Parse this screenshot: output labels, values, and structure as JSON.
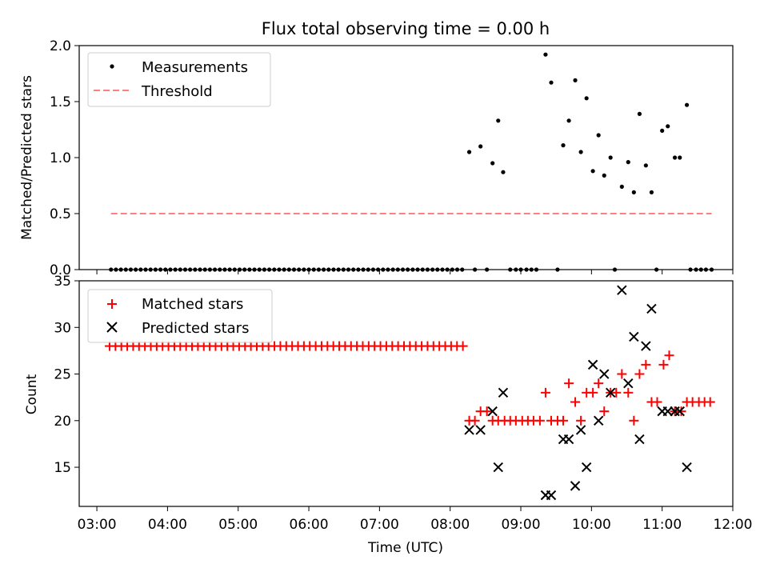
{
  "chart_data": [
    {
      "type": "scatter",
      "title": "Flux total observing time = 0.00 h",
      "xlabel": "",
      "ylabel": "Matched/Predicted stars",
      "ylim": [
        0,
        2.0
      ],
      "xlim": [
        2.75,
        12.0
      ],
      "yticks": [
        0.0,
        0.5,
        1.0,
        1.5,
        2.0
      ],
      "ytick_labels": [
        "0.0",
        "0.5",
        "1.0",
        "1.5",
        "2.0"
      ],
      "grid": false,
      "legend_position": "top-left",
      "legend": [
        {
          "label": "Measurements",
          "marker": "dot",
          "color": "#000000"
        },
        {
          "label": "Threshold",
          "marker": "dashed-line",
          "color": "#ff7f7f"
        }
      ],
      "threshold": {
        "name": "Threshold",
        "y": 0.5,
        "x_start": 3.2,
        "x_end": 11.7
      },
      "series": [
        {
          "name": "Measurements",
          "marker": "dot",
          "color": "#000000",
          "points": [
            [
              3.2,
              0
            ],
            [
              3.27,
              0
            ],
            [
              3.34,
              0
            ],
            [
              3.41,
              0
            ],
            [
              3.48,
              0
            ],
            [
              3.55,
              0
            ],
            [
              3.62,
              0
            ],
            [
              3.69,
              0
            ],
            [
              3.76,
              0
            ],
            [
              3.83,
              0
            ],
            [
              3.9,
              0
            ],
            [
              3.97,
              0
            ],
            [
              4.04,
              0
            ],
            [
              4.11,
              0
            ],
            [
              4.18,
              0
            ],
            [
              4.25,
              0
            ],
            [
              4.32,
              0
            ],
            [
              4.39,
              0
            ],
            [
              4.46,
              0
            ],
            [
              4.53,
              0
            ],
            [
              4.6,
              0
            ],
            [
              4.67,
              0
            ],
            [
              4.74,
              0
            ],
            [
              4.81,
              0
            ],
            [
              4.88,
              0
            ],
            [
              4.95,
              0
            ],
            [
              5.02,
              0
            ],
            [
              5.09,
              0
            ],
            [
              5.16,
              0
            ],
            [
              5.23,
              0
            ],
            [
              5.3,
              0
            ],
            [
              5.37,
              0
            ],
            [
              5.44,
              0
            ],
            [
              5.51,
              0
            ],
            [
              5.58,
              0
            ],
            [
              5.65,
              0
            ],
            [
              5.72,
              0
            ],
            [
              5.79,
              0
            ],
            [
              5.86,
              0
            ],
            [
              5.93,
              0
            ],
            [
              6.0,
              0
            ],
            [
              6.07,
              0
            ],
            [
              6.14,
              0
            ],
            [
              6.21,
              0
            ],
            [
              6.28,
              0
            ],
            [
              6.35,
              0
            ],
            [
              6.42,
              0
            ],
            [
              6.49,
              0
            ],
            [
              6.56,
              0
            ],
            [
              6.63,
              0
            ],
            [
              6.7,
              0
            ],
            [
              6.77,
              0
            ],
            [
              6.84,
              0
            ],
            [
              6.91,
              0
            ],
            [
              6.98,
              0
            ],
            [
              7.05,
              0
            ],
            [
              7.12,
              0
            ],
            [
              7.19,
              0
            ],
            [
              7.26,
              0
            ],
            [
              7.33,
              0
            ],
            [
              7.4,
              0
            ],
            [
              7.47,
              0
            ],
            [
              7.54,
              0
            ],
            [
              7.61,
              0
            ],
            [
              7.68,
              0
            ],
            [
              7.75,
              0
            ],
            [
              7.82,
              0
            ],
            [
              7.89,
              0
            ],
            [
              7.96,
              0
            ],
            [
              8.03,
              0
            ],
            [
              8.1,
              0
            ],
            [
              8.17,
              0
            ],
            [
              8.35,
              0
            ],
            [
              8.52,
              0
            ],
            [
              8.85,
              0
            ],
            [
              8.93,
              0
            ],
            [
              9.0,
              0
            ],
            [
              9.08,
              0
            ],
            [
              9.15,
              0
            ],
            [
              9.22,
              0
            ],
            [
              9.52,
              0
            ],
            [
              10.33,
              0
            ],
            [
              10.92,
              0
            ],
            [
              11.4,
              0
            ],
            [
              11.48,
              0
            ],
            [
              11.55,
              0
            ],
            [
              11.62,
              0
            ],
            [
              11.7,
              0
            ],
            [
              8.27,
              1.05
            ],
            [
              8.43,
              1.1
            ],
            [
              8.6,
              0.95
            ],
            [
              8.68,
              1.33
            ],
            [
              8.75,
              0.87
            ],
            [
              9.35,
              1.92
            ],
            [
              9.43,
              1.67
            ],
            [
              9.6,
              1.11
            ],
            [
              9.68,
              1.33
            ],
            [
              9.77,
              1.69
            ],
            [
              9.85,
              1.05
            ],
            [
              9.93,
              1.53
            ],
            [
              10.02,
              0.88
            ],
            [
              10.1,
              1.2
            ],
            [
              10.18,
              0.84
            ],
            [
              10.27,
              1.0
            ],
            [
              10.43,
              0.74
            ],
            [
              10.52,
              0.96
            ],
            [
              10.6,
              0.69
            ],
            [
              10.68,
              1.39
            ],
            [
              10.77,
              0.93
            ],
            [
              10.85,
              0.69
            ],
            [
              11.0,
              1.24
            ],
            [
              11.08,
              1.28
            ],
            [
              11.18,
              1.0
            ],
            [
              11.25,
              1.0
            ],
            [
              11.35,
              1.47
            ]
          ]
        }
      ]
    },
    {
      "type": "scatter",
      "title": "",
      "xlabel": "Time (UTC)",
      "ylabel": "Count",
      "ylim": [
        10.8,
        35.0
      ],
      "xlim": [
        2.75,
        12.0
      ],
      "yticks": [
        15,
        20,
        25,
        30,
        35
      ],
      "ytick_labels": [
        "15",
        "20",
        "25",
        "30",
        "35"
      ],
      "xticks": [
        3,
        4,
        5,
        6,
        7,
        8,
        9,
        10,
        11,
        12
      ],
      "xtick_labels": [
        "03:00",
        "04:00",
        "05:00",
        "06:00",
        "07:00",
        "08:00",
        "09:00",
        "10:00",
        "11:00",
        "12:00"
      ],
      "grid": false,
      "legend_position": "top-left",
      "legend": [
        {
          "label": "Matched stars",
          "marker": "plus",
          "color": "#ff0000"
        },
        {
          "label": "Predicted stars",
          "marker": "x",
          "color": "#000000"
        }
      ],
      "series": [
        {
          "name": "Matched stars",
          "marker": "plus",
          "color": "#ff0000",
          "constant_run": {
            "y": 28,
            "x_start": 3.18,
            "x_end": 8.18,
            "count": 61
          },
          "points": [
            [
              8.27,
              20
            ],
            [
              8.35,
              20
            ],
            [
              8.43,
              21
            ],
            [
              8.52,
              21
            ],
            [
              8.6,
              20
            ],
            [
              8.68,
              20
            ],
            [
              8.77,
              20
            ],
            [
              8.85,
              20
            ],
            [
              8.93,
              20
            ],
            [
              9.02,
              20
            ],
            [
              9.1,
              20
            ],
            [
              9.18,
              20
            ],
            [
              9.27,
              20
            ],
            [
              9.35,
              23
            ],
            [
              9.43,
              20
            ],
            [
              9.52,
              20
            ],
            [
              9.6,
              20
            ],
            [
              9.68,
              24
            ],
            [
              9.77,
              22
            ],
            [
              9.85,
              20
            ],
            [
              9.93,
              23
            ],
            [
              10.02,
              23
            ],
            [
              10.1,
              24
            ],
            [
              10.18,
              21
            ],
            [
              10.27,
              23
            ],
            [
              10.35,
              23
            ],
            [
              10.43,
              25
            ],
            [
              10.52,
              23
            ],
            [
              10.6,
              20
            ],
            [
              10.68,
              25
            ],
            [
              10.77,
              26
            ],
            [
              10.85,
              22
            ],
            [
              10.93,
              22
            ],
            [
              11.02,
              26
            ],
            [
              11.1,
              27
            ],
            [
              11.18,
              21
            ],
            [
              11.27,
              21
            ],
            [
              11.35,
              22
            ],
            [
              11.43,
              22
            ],
            [
              11.52,
              22
            ],
            [
              11.6,
              22
            ],
            [
              11.68,
              22
            ]
          ]
        },
        {
          "name": "Predicted stars",
          "marker": "x",
          "color": "#000000",
          "points": [
            [
              8.27,
              19
            ],
            [
              8.43,
              19
            ],
            [
              8.6,
              21
            ],
            [
              8.68,
              15
            ],
            [
              8.75,
              23
            ],
            [
              9.35,
              12
            ],
            [
              9.43,
              12
            ],
            [
              9.6,
              18
            ],
            [
              9.68,
              18
            ],
            [
              9.77,
              13
            ],
            [
              9.85,
              19
            ],
            [
              9.93,
              15
            ],
            [
              10.02,
              26
            ],
            [
              10.1,
              20
            ],
            [
              10.18,
              25
            ],
            [
              10.27,
              23
            ],
            [
              10.43,
              34
            ],
            [
              10.52,
              24
            ],
            [
              10.6,
              29
            ],
            [
              10.68,
              18
            ],
            [
              10.77,
              28
            ],
            [
              10.85,
              32
            ],
            [
              11.0,
              21
            ],
            [
              11.08,
              21
            ],
            [
              11.18,
              21
            ],
            [
              11.25,
              21
            ],
            [
              11.35,
              15
            ]
          ]
        }
      ]
    }
  ]
}
